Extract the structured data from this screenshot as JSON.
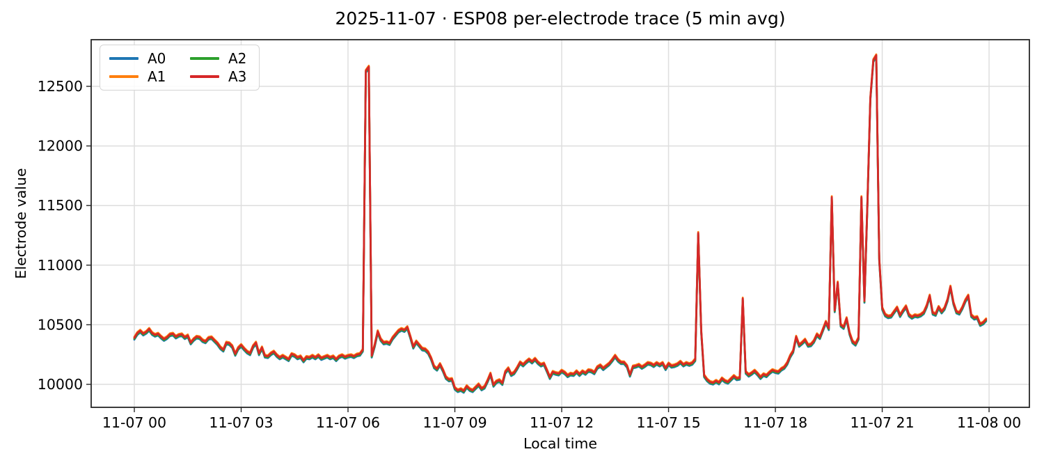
{
  "chart_data": {
    "type": "line",
    "title": "2025-11-07 · ESP08 per-electrode trace (5 min avg)",
    "xlabel": "Local time",
    "ylabel": "Electrode value",
    "grid": true,
    "legend_position": "upper left",
    "x_start_hour": 0.0,
    "x_step_minutes": 5,
    "x_tick_hours": [
      0,
      3,
      6,
      9,
      12,
      15,
      18,
      21,
      24
    ],
    "x_tick_labels": [
      "11-07 00",
      "11-07 03",
      "11-07 06",
      "11-07 09",
      "11-07 12",
      "11-07 15",
      "11-07 18",
      "11-07 21",
      "11-08 00"
    ],
    "y_ticks": [
      10000,
      10500,
      11000,
      11500,
      12000,
      12500
    ],
    "x_axis_hour_range": [
      -1.21,
      25.13
    ],
    "y_axis_range": [
      9800,
      12910
    ],
    "series": [
      {
        "name": "A0",
        "color": "#1f77b4",
        "offset_from_base": -15
      },
      {
        "name": "A1",
        "color": "#ff7f0e",
        "offset_from_base": 8
      },
      {
        "name": "A2",
        "color": "#2ca02c",
        "offset_from_base": -8
      },
      {
        "name": "A3",
        "color": "#d62728",
        "offset_from_base": 0
      }
    ],
    "base_values_5min": [
      10390,
      10430,
      10450,
      10425,
      10440,
      10465,
      10430,
      10415,
      10425,
      10400,
      10380,
      10395,
      10420,
      10425,
      10400,
      10415,
      10420,
      10395,
      10410,
      10350,
      10380,
      10400,
      10395,
      10370,
      10360,
      10390,
      10395,
      10370,
      10345,
      10310,
      10290,
      10350,
      10345,
      10320,
      10255,
      10305,
      10330,
      10300,
      10275,
      10260,
      10320,
      10350,
      10260,
      10310,
      10240,
      10235,
      10260,
      10275,
      10245,
      10225,
      10240,
      10225,
      10210,
      10255,
      10245,
      10225,
      10235,
      10200,
      10230,
      10225,
      10240,
      10225,
      10245,
      10220,
      10230,
      10240,
      10225,
      10235,
      10210,
      10235,
      10245,
      10230,
      10240,
      10245,
      10235,
      10250,
      10255,
      10290,
      12630,
      12665,
      10240,
      10330,
      10445,
      10380,
      10350,
      10355,
      10345,
      10390,
      10420,
      10450,
      10465,
      10455,
      10480,
      10400,
      10315,
      10360,
      10330,
      10300,
      10295,
      10270,
      10220,
      10150,
      10130,
      10170,
      10120,
      10060,
      10040,
      10045,
      9970,
      9950,
      9960,
      9945,
      9985,
      9960,
      9950,
      9975,
      10000,
      9965,
      9980,
      10030,
      10090,
      9995,
      10025,
      10035,
      10010,
      10105,
      10135,
      10085,
      10100,
      10140,
      10185,
      10165,
      10190,
      10210,
      10190,
      10215,
      10185,
      10165,
      10175,
      10120,
      10060,
      10105,
      10095,
      10090,
      10115,
      10100,
      10075,
      10090,
      10085,
      10110,
      10085,
      10110,
      10095,
      10120,
      10115,
      10100,
      10145,
      10160,
      10135,
      10155,
      10175,
      10205,
      10240,
      10205,
      10185,
      10185,
      10155,
      10080,
      10150,
      10155,
      10165,
      10145,
      10160,
      10180,
      10175,
      10160,
      10180,
      10165,
      10180,
      10135,
      10175,
      10155,
      10160,
      10170,
      10190,
      10165,
      10180,
      10170,
      10180,
      10210,
      11270,
      10450,
      10075,
      10040,
      10020,
      10013,
      10030,
      10015,
      10050,
      10030,
      10020,
      10045,
      10070,
      10050,
      10055,
      10720,
      10105,
      10080,
      10095,
      10115,
      10090,
      10060,
      10085,
      10075,
      10100,
      10120,
      10110,
      10105,
      10130,
      10145,
      10180,
      10240,
      10280,
      10400,
      10330,
      10350,
      10375,
      10330,
      10335,
      10365,
      10420,
      10395,
      10460,
      10525,
      10470,
      11570,
      10620,
      10855,
      10500,
      10480,
      10555,
      10430,
      10360,
      10340,
      10390,
      11570,
      10700,
      11500,
      12400,
      12720,
      12760,
      11050,
      10640,
      10585,
      10570,
      10575,
      10610,
      10645,
      10580,
      10620,
      10655,
      10585,
      10565,
      10580,
      10575,
      10585,
      10605,
      10660,
      10745,
      10600,
      10590,
      10650,
      10610,
      10640,
      10710,
      10820,
      10685,
      10610,
      10600,
      10645,
      10705,
      10745,
      10580,
      10558,
      10565,
      10505,
      10518,
      10545
    ]
  }
}
